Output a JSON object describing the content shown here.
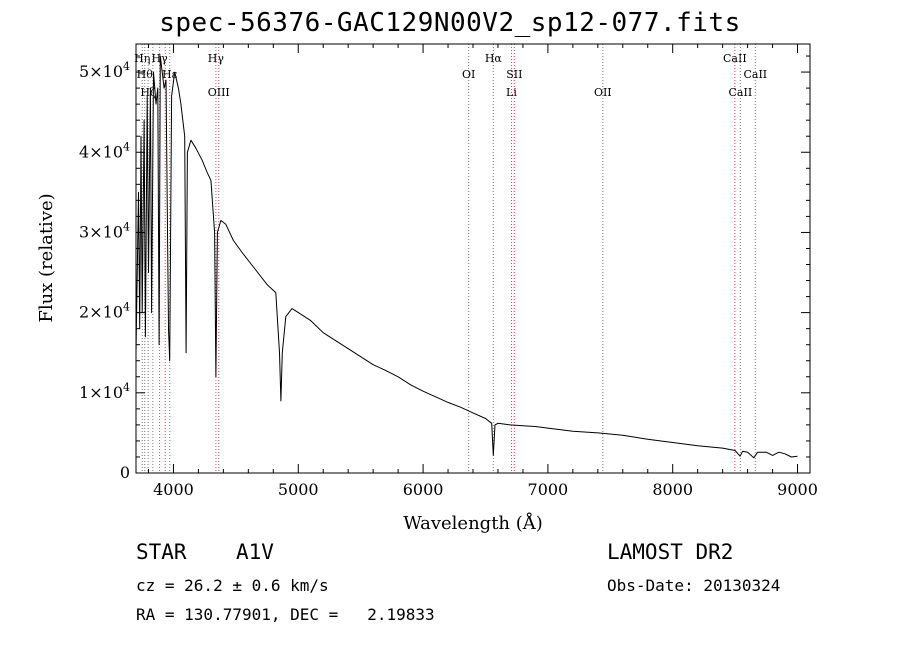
{
  "chart_data": {
    "type": "line",
    "title": "spec-56376-GAC129N00V2_sp12-077.fits",
    "xlabel": "Wavelength (Å)",
    "ylabel": "Flux (relative)",
    "xlim": [
      3700,
      9100
    ],
    "ylim": [
      0,
      53500
    ],
    "x_ticks": [
      4000,
      5000,
      6000,
      7000,
      8000,
      9000
    ],
    "x_tick_labels": [
      "4000",
      "5000",
      "6000",
      "7000",
      "8000",
      "9000"
    ],
    "y_ticks": [
      0,
      10000,
      20000,
      30000,
      40000,
      50000
    ],
    "y_tick_labels": [
      {
        "mant": "0",
        "exp": ""
      },
      {
        "mant": "1×10",
        "exp": "4"
      },
      {
        "mant": "2×10",
        "exp": "4"
      },
      {
        "mant": "3×10",
        "exp": "4"
      },
      {
        "mant": "4×10",
        "exp": "4"
      },
      {
        "mant": "5×10",
        "exp": "4"
      }
    ],
    "grid": false,
    "legend": "none",
    "series": [
      {
        "points": [
          [
            3700,
            15000
          ],
          [
            3720,
            35000
          ],
          [
            3730,
            18000
          ],
          [
            3740,
            42000
          ],
          [
            3750,
            20000
          ],
          [
            3765,
            44000
          ],
          [
            3775,
            17000
          ],
          [
            3790,
            47000
          ],
          [
            3800,
            25000
          ],
          [
            3815,
            48000
          ],
          [
            3825,
            20000
          ],
          [
            3840,
            50000
          ],
          [
            3860,
            46000
          ],
          [
            3875,
            48000
          ],
          [
            3885,
            16000
          ],
          [
            3895,
            52000
          ],
          [
            3910,
            50000
          ],
          [
            3925,
            48000
          ],
          [
            3940,
            49000
          ],
          [
            3960,
            18000
          ],
          [
            3970,
            14000
          ],
          [
            3985,
            47000
          ],
          [
            4010,
            50000
          ],
          [
            4040,
            48000
          ],
          [
            4060,
            46000
          ],
          [
            4090,
            42000
          ],
          [
            4101,
            15000
          ],
          [
            4112,
            40000
          ],
          [
            4140,
            41500
          ],
          [
            4180,
            40500
          ],
          [
            4230,
            39000
          ],
          [
            4270,
            37500
          ],
          [
            4300,
            36500
          ],
          [
            4330,
            30000
          ],
          [
            4340,
            12000
          ],
          [
            4352,
            30000
          ],
          [
            4380,
            31500
          ],
          [
            4420,
            31000
          ],
          [
            4480,
            29000
          ],
          [
            4550,
            27500
          ],
          [
            4650,
            25500
          ],
          [
            4750,
            23500
          ],
          [
            4820,
            22500
          ],
          [
            4850,
            15000
          ],
          [
            4861,
            9000
          ],
          [
            4872,
            15000
          ],
          [
            4900,
            19500
          ],
          [
            4950,
            20500
          ],
          [
            5000,
            20000
          ],
          [
            5100,
            19000
          ],
          [
            5200,
            17500
          ],
          [
            5300,
            16500
          ],
          [
            5400,
            15500
          ],
          [
            5500,
            14500
          ],
          [
            5600,
            13500
          ],
          [
            5700,
            12800
          ],
          [
            5800,
            12000
          ],
          [
            5900,
            11000
          ],
          [
            6000,
            10200
          ],
          [
            6100,
            9500
          ],
          [
            6200,
            8800
          ],
          [
            6300,
            8200
          ],
          [
            6400,
            7500
          ],
          [
            6500,
            6800
          ],
          [
            6550,
            6200
          ],
          [
            6563,
            2200
          ],
          [
            6576,
            6000
          ],
          [
            6600,
            6200
          ],
          [
            6700,
            6000
          ],
          [
            6800,
            5900
          ],
          [
            6900,
            5800
          ],
          [
            7000,
            5600
          ],
          [
            7200,
            5200
          ],
          [
            7400,
            5000
          ],
          [
            7600,
            4700
          ],
          [
            7800,
            4200
          ],
          [
            8000,
            3800
          ],
          [
            8200,
            3400
          ],
          [
            8400,
            3100
          ],
          [
            8500,
            2800
          ],
          [
            8540,
            2100
          ],
          [
            8560,
            2700
          ],
          [
            8600,
            2600
          ],
          [
            8650,
            1900
          ],
          [
            8680,
            2600
          ],
          [
            8750,
            2600
          ],
          [
            8800,
            2200
          ],
          [
            8850,
            2600
          ],
          [
            8900,
            2400
          ],
          [
            8950,
            2000
          ],
          [
            9000,
            2100
          ]
        ]
      }
    ],
    "line_markers": [
      {
        "wave": 3750,
        "label": "Hη",
        "row": 0,
        "color": "#777777"
      },
      {
        "wave": 3770,
        "label": "Hθ",
        "row": 1,
        "color": "#777777"
      },
      {
        "wave": 3797,
        "label": "Hζ",
        "row": 2,
        "color": "#777777"
      },
      {
        "wave": 3835,
        "label": "",
        "row": 0,
        "color": "#777777"
      },
      {
        "wave": 3889,
        "label": "Hγ",
        "row": 0,
        "color": "#777777"
      },
      {
        "wave": 3934,
        "label": "",
        "row": 0,
        "color": "#e04040"
      },
      {
        "wave": 3970,
        "label": "Hε",
        "row": 1,
        "color": "#777777"
      },
      {
        "wave": 4340,
        "label": "Hγ",
        "row": 0,
        "color": "#777777"
      },
      {
        "wave": 4363,
        "label": "OIII",
        "row": 2,
        "color": "#e04040"
      },
      {
        "wave": 6365,
        "label": "OI",
        "row": 1,
        "color": "#777777"
      },
      {
        "wave": 6563,
        "label": "Hα",
        "row": 0,
        "color": "#777777"
      },
      {
        "wave": 6708,
        "label": "Li",
        "row": 2,
        "color": "#e04040"
      },
      {
        "wave": 6731,
        "label": "SII",
        "row": 1,
        "color": "#e04040"
      },
      {
        "wave": 7440,
        "label": "OII",
        "row": 2,
        "color": "#777777"
      },
      {
        "wave": 8498,
        "label": "CaII",
        "row": 0,
        "color": "#e04040"
      },
      {
        "wave": 8542,
        "label": "CaII",
        "row": 2,
        "color": "#777777"
      },
      {
        "wave": 8662,
        "label": "CaII",
        "row": 1,
        "color": "#777777"
      }
    ]
  },
  "info": {
    "object_type": "STAR",
    "subclass": "A1V",
    "survey": "LAMOST DR2",
    "cz": "cz = 26.2 ± 0.6 km/s",
    "obs_date": "Obs-Date: 20130324",
    "radec": "RA = 130.77901, DEC =   2.19833"
  }
}
